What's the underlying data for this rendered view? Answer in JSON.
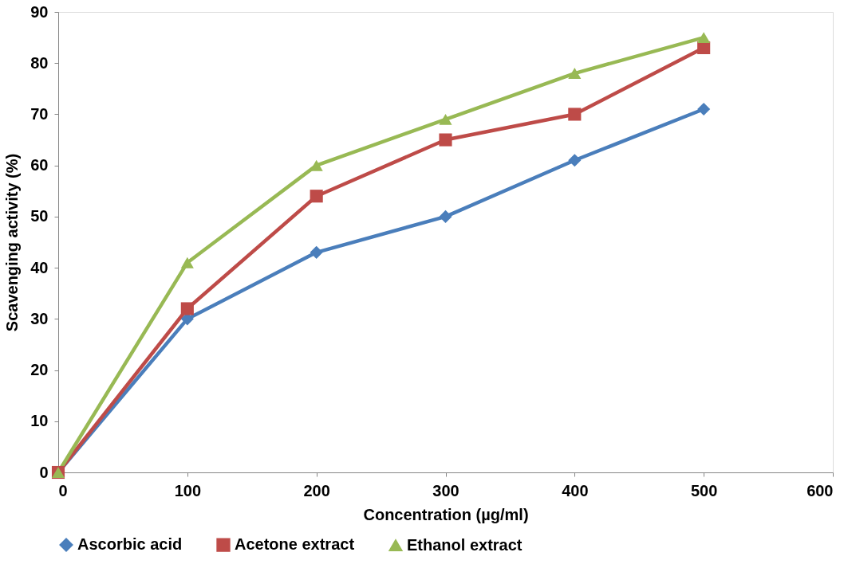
{
  "chart_data": {
    "type": "line",
    "xlabel": "Concentration (µg/ml)",
    "ylabel": "Scavenging activity (%)",
    "x": [
      0,
      100,
      200,
      300,
      400,
      500
    ],
    "series": [
      {
        "name": "Ascorbic acid",
        "color": "#4a7ebb",
        "marker": "diamond",
        "values": [
          0,
          30,
          43,
          50,
          61,
          71
        ]
      },
      {
        "name": "Acetone extract",
        "color": "#be4b48",
        "marker": "square",
        "values": [
          0,
          32,
          54,
          65,
          70,
          83
        ]
      },
      {
        "name": "Ethanol extract",
        "color": "#98b954",
        "marker": "triangle",
        "values": [
          0,
          41,
          60,
          69,
          78,
          85
        ]
      }
    ],
    "xlim": [
      0,
      600
    ],
    "xticks": [
      0,
      100,
      200,
      300,
      400,
      500,
      600
    ],
    "ylim": [
      0,
      90
    ],
    "yticks": [
      0,
      10,
      20,
      30,
      40,
      50,
      60,
      70,
      80,
      90
    ],
    "grid": false,
    "legend": "bottom",
    "line_style": "solid"
  }
}
